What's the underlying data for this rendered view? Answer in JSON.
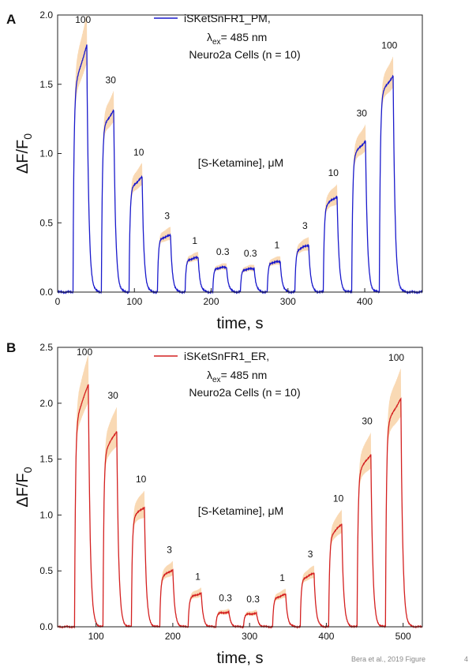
{
  "footer": {
    "citation": "Bera et al., 2019 Figure",
    "page_number": "4"
  },
  "chart_data": [
    {
      "type": "line",
      "panel_label": "A",
      "legend": {
        "name": "iSKetSnFR1_PM,",
        "placement": "top-center"
      },
      "line_color": "#1a1acc",
      "band_color": "#f9d9b4",
      "annotation_lambda": {
        "prefix": "λ",
        "sub": "ex",
        "suffix": "= 485 nm"
      },
      "annotation_cells": "Neuro2a Cells (n = 10)",
      "annotation_conc": "[S-Ketamine], μM",
      "xlabel": "time, s",
      "ylabel": {
        "main": "ΔF/F",
        "sub": "0"
      },
      "xlim": [
        0,
        475
      ],
      "ylim": [
        0,
        2.0
      ],
      "xticks": [
        0,
        100,
        200,
        300,
        400
      ],
      "yticks": [
        "0.0",
        "0.5",
        "1.0",
        "1.5",
        "2.0"
      ],
      "yticks_values": [
        0,
        0.5,
        1.0,
        1.5,
        2.0
      ],
      "pulses": [
        {
          "label": "100",
          "start": 20,
          "end": 38,
          "peak_start": 1.45,
          "peak": 1.78,
          "band": 0.22
        },
        {
          "label": "30",
          "start": 57,
          "end": 73,
          "peak_start": 1.18,
          "peak": 1.31,
          "band": 0.14
        },
        {
          "label": "10",
          "start": 93,
          "end": 110,
          "peak_start": 0.74,
          "peak": 0.83,
          "band": 0.1
        },
        {
          "label": "3",
          "start": 130,
          "end": 147,
          "peak_start": 0.38,
          "peak": 0.41,
          "band": 0.06
        },
        {
          "label": "1",
          "start": 166,
          "end": 183,
          "peak_start": 0.23,
          "peak": 0.25,
          "band": 0.04
        },
        {
          "label": "0.3",
          "start": 202,
          "end": 220,
          "peak_start": 0.17,
          "peak": 0.18,
          "band": 0.03
        },
        {
          "label": "0.3",
          "start": 238,
          "end": 256,
          "peak_start": 0.16,
          "peak": 0.17,
          "band": 0.03
        },
        {
          "label": "1",
          "start": 273,
          "end": 290,
          "peak_start": 0.21,
          "peak": 0.22,
          "band": 0.04
        },
        {
          "label": "3",
          "start": 309,
          "end": 327,
          "peak_start": 0.3,
          "peak": 0.34,
          "band": 0.06
        },
        {
          "label": "10",
          "start": 346,
          "end": 364,
          "peak_start": 0.62,
          "peak": 0.69,
          "band": 0.09
        },
        {
          "label": "30",
          "start": 383,
          "end": 401,
          "peak_start": 0.98,
          "peak": 1.09,
          "band": 0.12
        },
        {
          "label": "100",
          "start": 419,
          "end": 437,
          "peak_start": 1.42,
          "peak": 1.56,
          "band": 0.14
        }
      ]
    },
    {
      "type": "line",
      "panel_label": "B",
      "legend": {
        "name": "iSKetSnFR1_ER,",
        "placement": "top-center"
      },
      "line_color": "#d42020",
      "band_color": "#f9d9b4",
      "annotation_lambda": {
        "prefix": "λ",
        "sub": "ex",
        "suffix": "= 485 nm"
      },
      "annotation_cells": "Neuro2a Cells (n = 10)",
      "annotation_conc": "[S-Ketamine], μM",
      "xlabel": "time, s",
      "ylabel": {
        "main": "ΔF/F",
        "sub": "0"
      },
      "xlim": [
        50,
        525
      ],
      "ylim": [
        0,
        2.5
      ],
      "xticks": [
        100,
        200,
        300,
        400,
        500
      ],
      "yticks": [
        "0.0",
        "0.5",
        "1.0",
        "1.5",
        "2.0",
        "2.5"
      ],
      "yticks_values": [
        0,
        0.5,
        1.0,
        1.5,
        2.0,
        2.5
      ],
      "pulses": [
        {
          "label": "100",
          "start": 72,
          "end": 90,
          "peak_start": 1.82,
          "peak": 2.17,
          "band": 0.27
        },
        {
          "label": "30",
          "start": 109,
          "end": 127,
          "peak_start": 1.55,
          "peak": 1.75,
          "band": 0.22
        },
        {
          "label": "10",
          "start": 146,
          "end": 163,
          "peak_start": 0.98,
          "peak": 1.07,
          "band": 0.15
        },
        {
          "label": "3",
          "start": 183,
          "end": 200,
          "peak_start": 0.44,
          "peak": 0.51,
          "band": 0.08
        },
        {
          "label": "1",
          "start": 220,
          "end": 237,
          "peak_start": 0.26,
          "peak": 0.3,
          "band": 0.05
        },
        {
          "label": "0.3",
          "start": 256,
          "end": 273,
          "peak_start": 0.12,
          "peak": 0.13,
          "band": 0.03
        },
        {
          "label": "0.3",
          "start": 292,
          "end": 309,
          "peak_start": 0.11,
          "peak": 0.12,
          "band": 0.03
        },
        {
          "label": "1",
          "start": 330,
          "end": 347,
          "peak_start": 0.25,
          "peak": 0.29,
          "band": 0.05
        },
        {
          "label": "3",
          "start": 366,
          "end": 384,
          "peak_start": 0.42,
          "peak": 0.48,
          "band": 0.07
        },
        {
          "label": "10",
          "start": 403,
          "end": 420,
          "peak_start": 0.8,
          "peak": 0.92,
          "band": 0.13
        },
        {
          "label": "30",
          "start": 440,
          "end": 458,
          "peak_start": 1.38,
          "peak": 1.54,
          "band": 0.2
        },
        {
          "label": "100",
          "start": 477,
          "end": 497,
          "peak_start": 1.8,
          "peak": 2.04,
          "band": 0.27
        }
      ]
    }
  ]
}
